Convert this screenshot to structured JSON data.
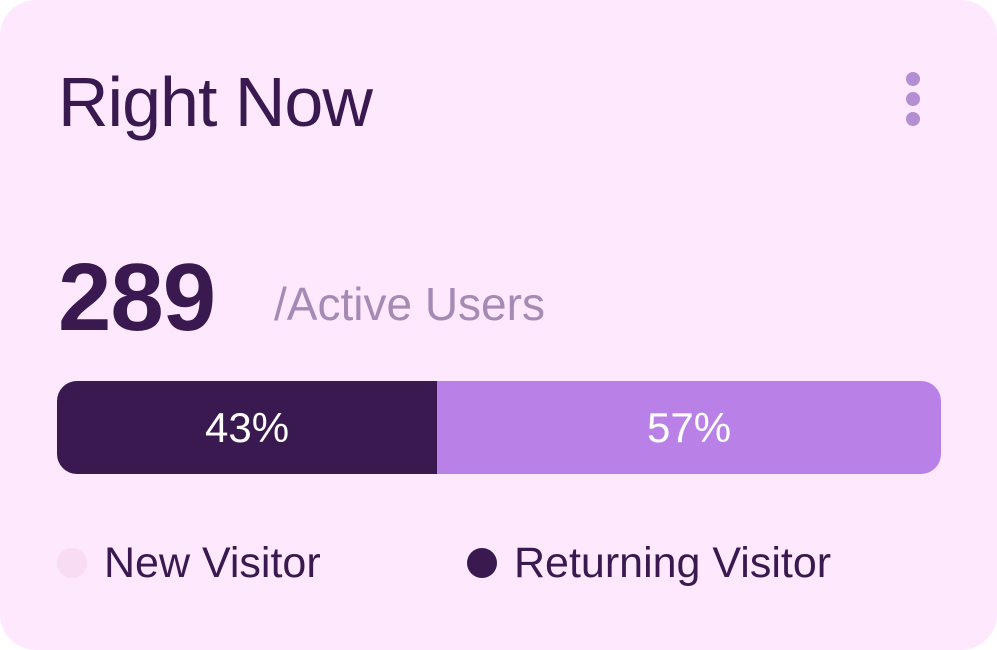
{
  "widget": {
    "title": "Right Now",
    "menu_icon": "more-vertical-icon"
  },
  "active_users": {
    "count": "289",
    "label": "/Active Users"
  },
  "split": {
    "segments": [
      {
        "label": "43%",
        "value": 0.43,
        "color": "#3a1850"
      },
      {
        "label": "57%",
        "value": 0.57,
        "color": "#b981e8"
      }
    ]
  },
  "legend": [
    {
      "label": "New Visitor",
      "color": "#f8dcf4"
    },
    {
      "label": "Returning Visitor",
      "color": "#3a1850"
    }
  ]
}
